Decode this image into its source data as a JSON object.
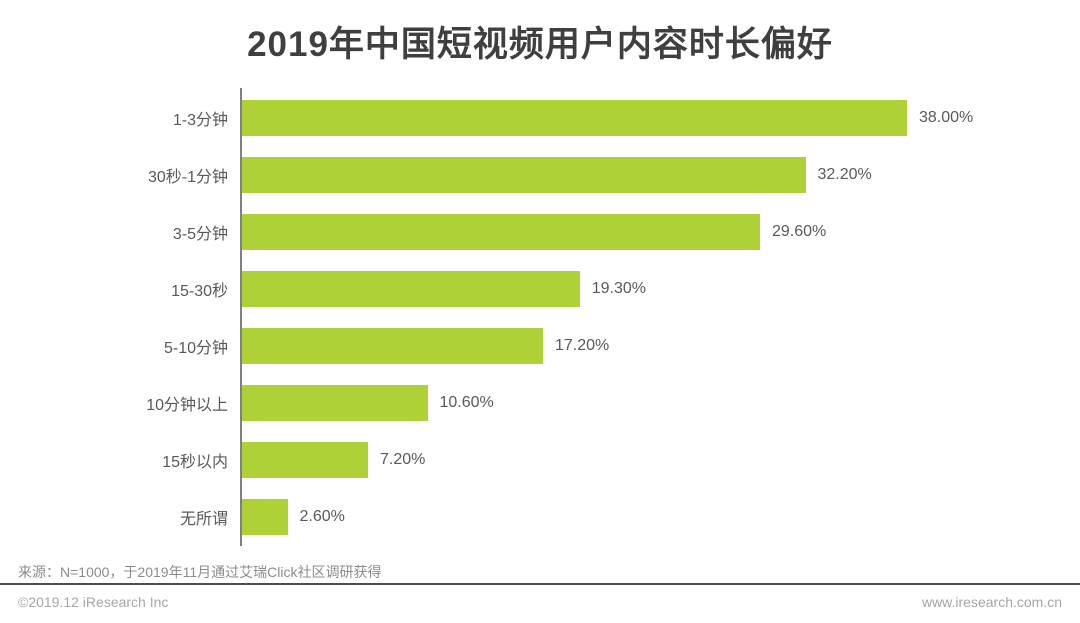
{
  "title": "2019年中国短视频用户内容时长偏好",
  "chart_data": {
    "type": "bar",
    "orientation": "horizontal",
    "title": "2019年中国短视频用户内容时长偏好",
    "categories": [
      "1-3分钟",
      "30秒-1分钟",
      "3-5分钟",
      "15-30秒",
      "5-10分钟",
      "10分钟以上",
      "15秒以内",
      "无所谓"
    ],
    "values": [
      38.0,
      32.2,
      29.6,
      19.3,
      17.2,
      10.6,
      7.2,
      2.6
    ],
    "value_labels": [
      "38.00%",
      "32.20%",
      "29.60%",
      "19.30%",
      "17.20%",
      "10.60%",
      "7.20%",
      "2.60%"
    ],
    "xlabel": "",
    "ylabel": "",
    "xlim": [
      0,
      40
    ],
    "grid": false,
    "legend": null,
    "bar_color": "#add136"
  },
  "source_note": "来源：N=1000，于2019年11月通过艾瑞Click社区调研获得",
  "footer": {
    "copyright": "©2019.12 iResearch Inc",
    "website": "www.iresearch.com.cn"
  },
  "colors": {
    "bar": "#add136",
    "title_text": "#3f3f3f",
    "label_text": "#595959",
    "axis_line": "#808080",
    "divider_line": "#4d4d4d",
    "source_text": "#8c8c8c",
    "footer_text": "#a6a6a6"
  }
}
